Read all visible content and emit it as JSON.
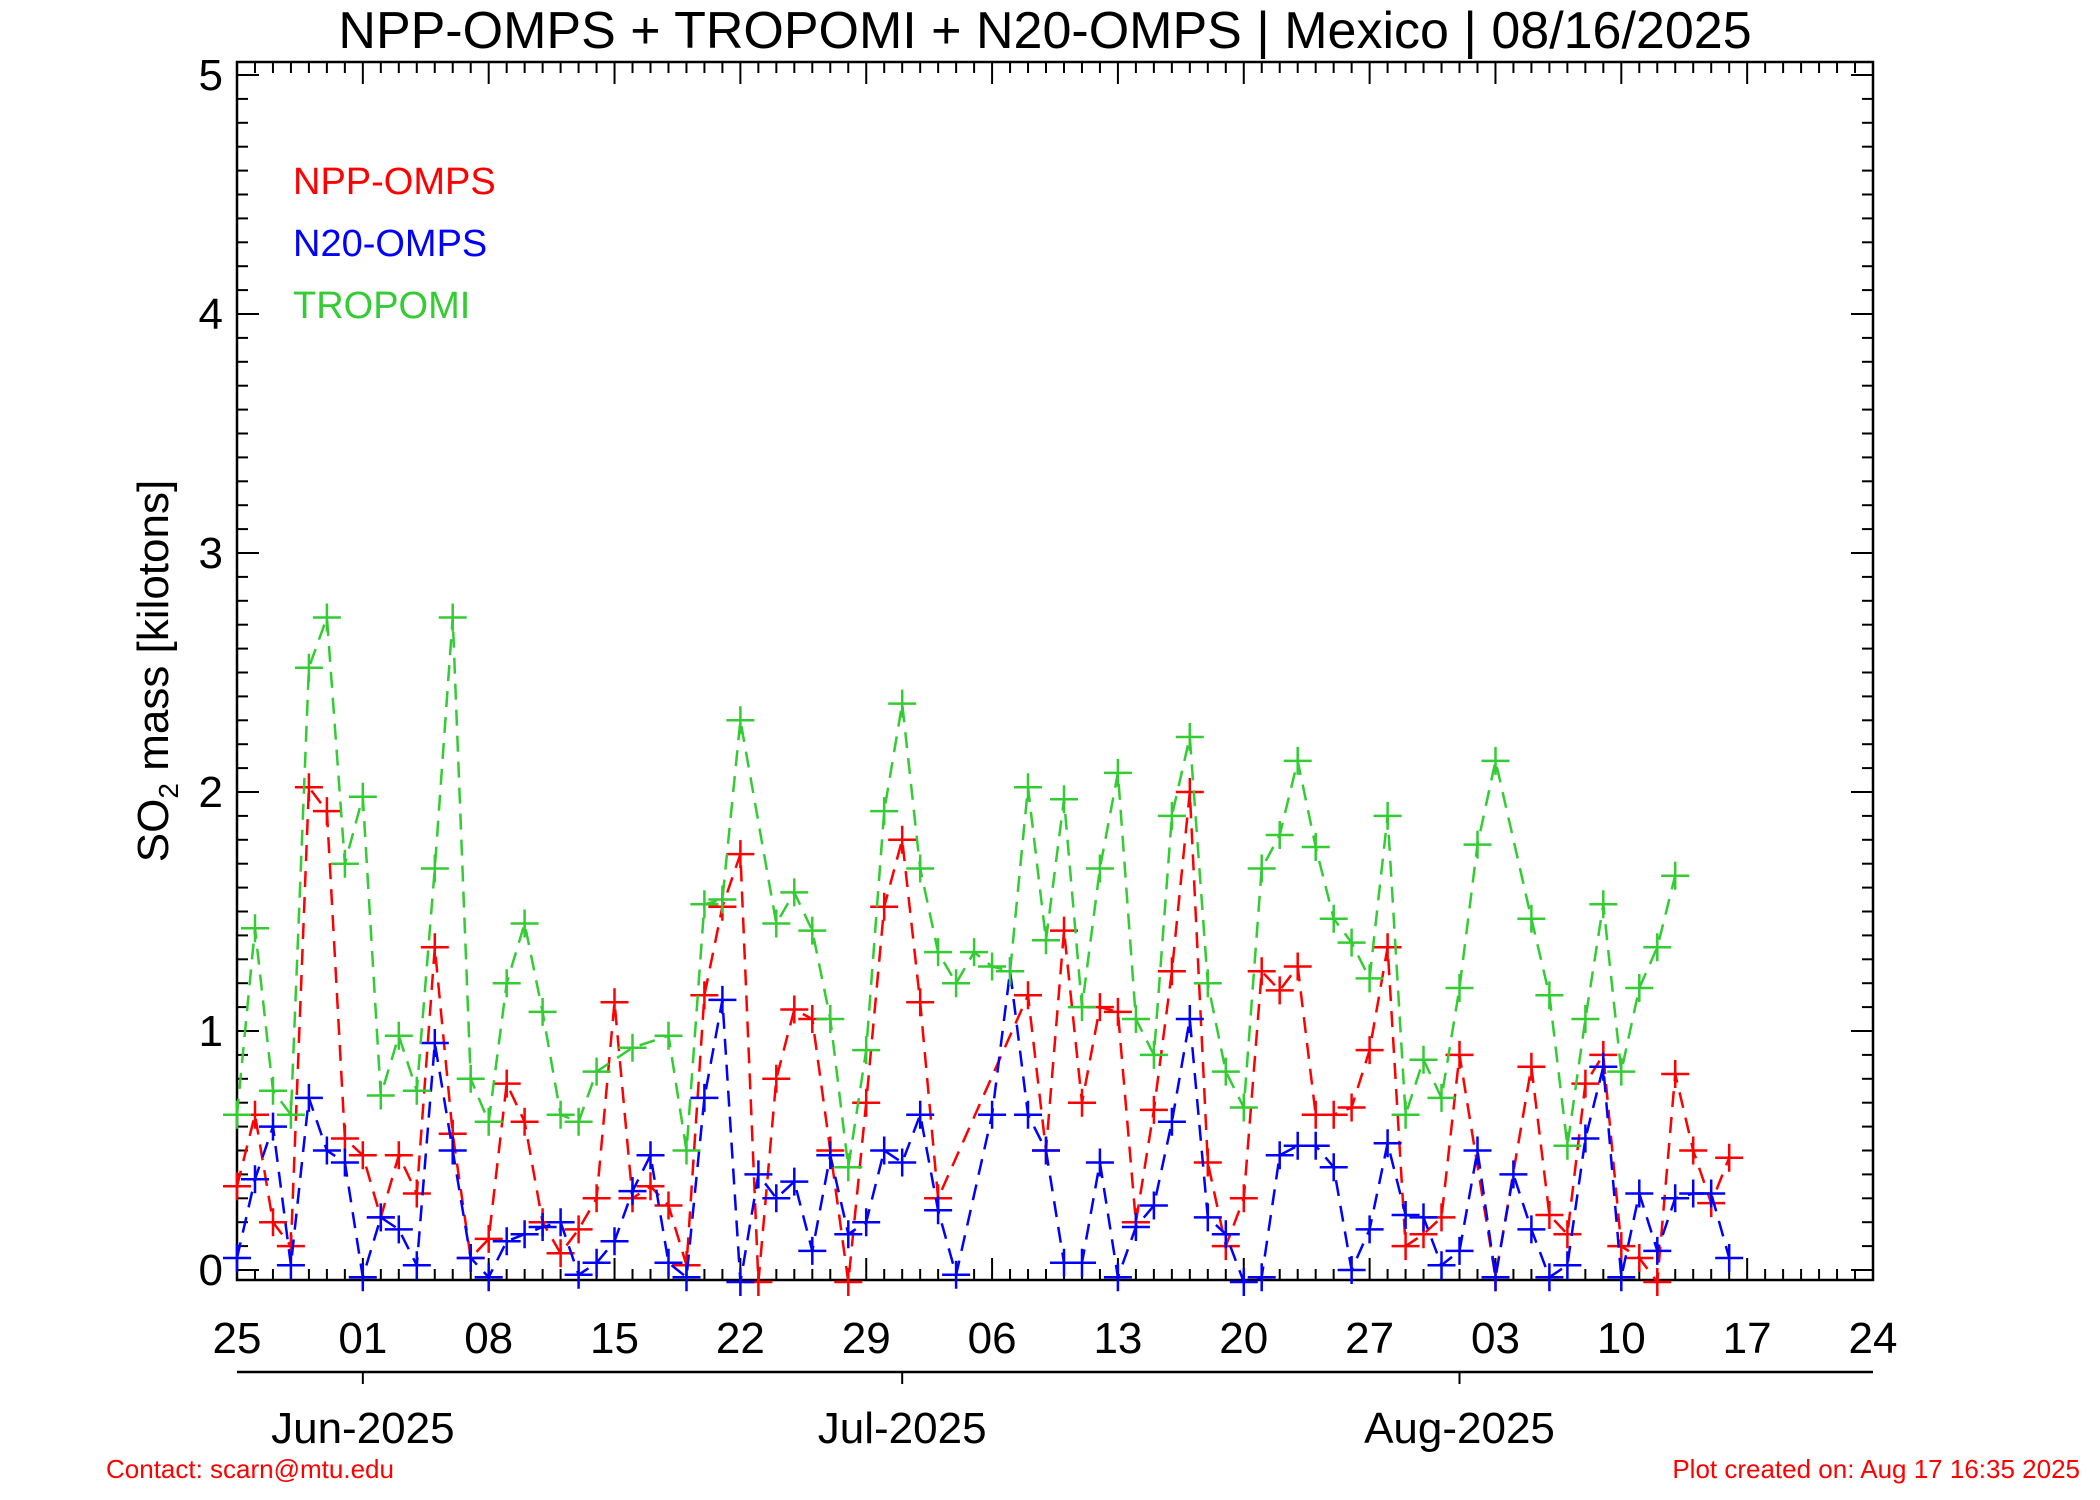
{
  "chart_data": {
    "type": "line",
    "title": "NPP-OMPS + TROPOMI + N20-OMPS | Mexico | 08/16/2025",
    "ylabel_main": "SO",
    "ylabel_sub": "2",
    "ylabel_rest": " mass [kilotons]",
    "ylim": [
      0,
      5
    ],
    "y_ticks": [
      "0",
      "1",
      "2",
      "3",
      "4",
      "5"
    ],
    "x_range": [
      "2025-05-25",
      "2025-08-24"
    ],
    "x_ticks": [
      {
        "date": "2025-05-25",
        "label": "25"
      },
      {
        "date": "2025-06-01",
        "label": "01"
      },
      {
        "date": "2025-06-08",
        "label": "08"
      },
      {
        "date": "2025-06-15",
        "label": "15"
      },
      {
        "date": "2025-06-22",
        "label": "22"
      },
      {
        "date": "2025-06-29",
        "label": "29"
      },
      {
        "date": "2025-07-06",
        "label": "06"
      },
      {
        "date": "2025-07-13",
        "label": "13"
      },
      {
        "date": "2025-07-20",
        "label": "20"
      },
      {
        "date": "2025-07-27",
        "label": "27"
      },
      {
        "date": "2025-08-03",
        "label": "03"
      },
      {
        "date": "2025-08-10",
        "label": "10"
      },
      {
        "date": "2025-08-17",
        "label": "17"
      },
      {
        "date": "2025-08-24",
        "label": "24"
      }
    ],
    "months": [
      {
        "date": "2025-06-01",
        "label": "Jun-2025"
      },
      {
        "date": "2025-07-01",
        "label": "Jul-2025"
      },
      {
        "date": "2025-08-01",
        "label": "Aug-2025"
      }
    ],
    "legend_placement": "top-left",
    "series": [
      {
        "name": "NPP-OMPS",
        "color": "#ff0000",
        "points": [
          [
            "2025-05-25",
            0.35
          ],
          [
            "2025-05-26",
            0.65
          ],
          [
            "2025-05-27",
            0.2
          ],
          [
            "2025-05-28",
            0.1
          ],
          [
            "2025-05-29",
            2.02
          ],
          [
            "2025-05-30",
            1.92
          ],
          [
            "2025-05-31",
            0.55
          ],
          [
            "2025-06-01",
            0.48
          ],
          [
            "2025-06-02",
            0.22
          ],
          [
            "2025-06-03",
            0.48
          ],
          [
            "2025-06-04",
            0.32
          ],
          [
            "2025-06-05",
            1.35
          ],
          [
            "2025-06-06",
            0.57
          ],
          [
            "2025-06-07",
            0.05
          ],
          [
            "2025-06-08",
            0.13
          ],
          [
            "2025-06-09",
            0.78
          ],
          [
            "2025-06-10",
            0.62
          ],
          [
            "2025-06-11",
            0.2
          ],
          [
            "2025-06-12",
            0.07
          ],
          [
            "2025-06-13",
            0.17
          ],
          [
            "2025-06-14",
            0.3
          ],
          [
            "2025-06-15",
            1.12
          ],
          [
            "2025-06-16",
            0.3
          ],
          [
            "2025-06-17",
            0.35
          ],
          [
            "2025-06-18",
            0.27
          ],
          [
            "2025-06-19",
            0.02
          ],
          [
            "2025-06-20",
            1.15
          ],
          [
            "2025-06-21",
            1.52
          ],
          [
            "2025-06-22",
            1.74
          ],
          [
            "2025-06-23",
            -0.05
          ],
          [
            "2025-06-24",
            0.8
          ],
          [
            "2025-06-25",
            1.09
          ],
          [
            "2025-06-26",
            1.05
          ],
          [
            "2025-06-27",
            0.5
          ],
          [
            "2025-06-28",
            -0.05
          ],
          [
            "2025-06-29",
            0.7
          ],
          [
            "2025-06-30",
            1.52
          ],
          [
            "2025-07-01",
            1.8
          ],
          [
            "2025-07-02",
            1.12
          ],
          [
            "2025-07-03",
            0.3
          ],
          [
            "2025-07-08",
            1.15
          ],
          [
            "2025-07-09",
            0.5
          ],
          [
            "2025-07-10",
            1.42
          ],
          [
            "2025-07-11",
            0.7
          ],
          [
            "2025-07-12",
            1.1
          ],
          [
            "2025-07-13",
            1.08
          ],
          [
            "2025-07-14",
            0.2
          ],
          [
            "2025-07-15",
            0.67
          ],
          [
            "2025-07-16",
            1.25
          ],
          [
            "2025-07-17",
            2.0
          ],
          [
            "2025-07-18",
            0.45
          ],
          [
            "2025-07-19",
            0.1
          ],
          [
            "2025-07-20",
            0.3
          ],
          [
            "2025-07-21",
            1.25
          ],
          [
            "2025-07-22",
            1.17
          ],
          [
            "2025-07-23",
            1.27
          ],
          [
            "2025-07-24",
            0.65
          ],
          [
            "2025-07-25",
            0.65
          ],
          [
            "2025-07-26",
            0.68
          ],
          [
            "2025-07-27",
            0.92
          ],
          [
            "2025-07-28",
            1.35
          ],
          [
            "2025-07-29",
            0.1
          ],
          [
            "2025-07-30",
            0.15
          ],
          [
            "2025-07-31",
            0.22
          ],
          [
            "2025-08-01",
            0.9
          ],
          [
            "2025-08-03",
            -0.03
          ],
          [
            "2025-08-05",
            0.85
          ],
          [
            "2025-08-06",
            0.23
          ],
          [
            "2025-08-07",
            0.15
          ],
          [
            "2025-08-08",
            0.78
          ],
          [
            "2025-08-09",
            0.9
          ],
          [
            "2025-08-10",
            0.1
          ],
          [
            "2025-08-11",
            0.05
          ],
          [
            "2025-08-12",
            -0.05
          ],
          [
            "2025-08-13",
            0.82
          ],
          [
            "2025-08-14",
            0.5
          ],
          [
            "2025-08-15",
            0.28
          ],
          [
            "2025-08-16",
            0.47
          ]
        ]
      },
      {
        "name": "N20-OMPS",
        "color": "#0000ff",
        "points": [
          [
            "2025-05-25",
            0.05
          ],
          [
            "2025-05-26",
            0.38
          ],
          [
            "2025-05-27",
            0.6
          ],
          [
            "2025-05-28",
            0.02
          ],
          [
            "2025-05-29",
            0.72
          ],
          [
            "2025-05-30",
            0.5
          ],
          [
            "2025-05-31",
            0.45
          ],
          [
            "2025-06-01",
            -0.03
          ],
          [
            "2025-06-02",
            0.22
          ],
          [
            "2025-06-03",
            0.17
          ],
          [
            "2025-06-04",
            0.02
          ],
          [
            "2025-06-05",
            0.95
          ],
          [
            "2025-06-06",
            0.5
          ],
          [
            "2025-06-07",
            0.05
          ],
          [
            "2025-06-08",
            -0.03
          ],
          [
            "2025-06-09",
            0.12
          ],
          [
            "2025-06-10",
            0.15
          ],
          [
            "2025-06-11",
            0.18
          ],
          [
            "2025-06-12",
            0.2
          ],
          [
            "2025-06-13",
            -0.02
          ],
          [
            "2025-06-14",
            0.03
          ],
          [
            "2025-06-15",
            0.12
          ],
          [
            "2025-06-16",
            0.33
          ],
          [
            "2025-06-17",
            0.48
          ],
          [
            "2025-06-18",
            0.03
          ],
          [
            "2025-06-19",
            -0.03
          ],
          [
            "2025-06-20",
            0.72
          ],
          [
            "2025-06-21",
            1.13
          ],
          [
            "2025-06-22",
            -0.05
          ],
          [
            "2025-06-23",
            0.4
          ],
          [
            "2025-06-24",
            0.3
          ],
          [
            "2025-06-25",
            0.37
          ],
          [
            "2025-06-26",
            0.08
          ],
          [
            "2025-06-27",
            0.48
          ],
          [
            "2025-06-28",
            0.15
          ],
          [
            "2025-06-29",
            0.2
          ],
          [
            "2025-06-30",
            0.5
          ],
          [
            "2025-07-01",
            0.45
          ],
          [
            "2025-07-02",
            0.65
          ],
          [
            "2025-07-03",
            0.25
          ],
          [
            "2025-07-04",
            -0.02
          ],
          [
            "2025-07-06",
            0.65
          ],
          [
            "2025-07-07",
            1.25
          ],
          [
            "2025-07-08",
            0.65
          ],
          [
            "2025-07-09",
            0.5
          ],
          [
            "2025-07-10",
            0.03
          ],
          [
            "2025-07-11",
            0.03
          ],
          [
            "2025-07-12",
            0.45
          ],
          [
            "2025-07-13",
            -0.03
          ],
          [
            "2025-07-14",
            0.18
          ],
          [
            "2025-07-15",
            0.27
          ],
          [
            "2025-07-16",
            0.62
          ],
          [
            "2025-07-17",
            1.05
          ],
          [
            "2025-07-18",
            0.22
          ],
          [
            "2025-07-19",
            0.15
          ],
          [
            "2025-07-20",
            -0.05
          ],
          [
            "2025-07-21",
            -0.03
          ],
          [
            "2025-07-22",
            0.48
          ],
          [
            "2025-07-23",
            0.52
          ],
          [
            "2025-07-24",
            0.52
          ],
          [
            "2025-07-25",
            0.43
          ],
          [
            "2025-07-26",
            0.0
          ],
          [
            "2025-07-27",
            0.17
          ],
          [
            "2025-07-28",
            0.53
          ],
          [
            "2025-07-29",
            0.23
          ],
          [
            "2025-07-30",
            0.22
          ],
          [
            "2025-07-31",
            0.02
          ],
          [
            "2025-08-01",
            0.08
          ],
          [
            "2025-08-02",
            0.5
          ],
          [
            "2025-08-03",
            -0.03
          ],
          [
            "2025-08-04",
            0.4
          ],
          [
            "2025-08-05",
            0.17
          ],
          [
            "2025-08-06",
            -0.03
          ],
          [
            "2025-08-07",
            0.02
          ],
          [
            "2025-08-08",
            0.55
          ],
          [
            "2025-08-09",
            0.85
          ],
          [
            "2025-08-10",
            -0.03
          ],
          [
            "2025-08-11",
            0.32
          ],
          [
            "2025-08-12",
            0.08
          ],
          [
            "2025-08-13",
            0.3
          ],
          [
            "2025-08-14",
            0.32
          ],
          [
            "2025-08-15",
            0.32
          ],
          [
            "2025-08-16",
            0.05
          ]
        ]
      },
      {
        "name": "TROPOMI",
        "color": "#33cc33",
        "points": [
          [
            "2025-05-25",
            0.65
          ],
          [
            "2025-05-26",
            1.43
          ],
          [
            "2025-05-27",
            0.75
          ],
          [
            "2025-05-28",
            0.65
          ],
          [
            "2025-05-29",
            2.52
          ],
          [
            "2025-05-30",
            2.73
          ],
          [
            "2025-05-31",
            1.7
          ],
          [
            "2025-06-01",
            1.98
          ],
          [
            "2025-06-02",
            0.73
          ],
          [
            "2025-06-03",
            0.98
          ],
          [
            "2025-06-04",
            0.75
          ],
          [
            "2025-06-05",
            1.68
          ],
          [
            "2025-06-06",
            2.73
          ],
          [
            "2025-06-07",
            0.8
          ],
          [
            "2025-06-08",
            0.62
          ],
          [
            "2025-06-09",
            1.2
          ],
          [
            "2025-06-10",
            1.45
          ],
          [
            "2025-06-11",
            1.08
          ],
          [
            "2025-06-12",
            0.65
          ],
          [
            "2025-06-13",
            0.62
          ],
          [
            "2025-06-14",
            0.83
          ],
          [
            "2025-06-16",
            0.93
          ],
          [
            "2025-06-18",
            0.98
          ],
          [
            "2025-06-19",
            0.5
          ],
          [
            "2025-06-20",
            1.53
          ],
          [
            "2025-06-21",
            1.55
          ],
          [
            "2025-06-22",
            2.3
          ],
          [
            "2025-06-24",
            1.45
          ],
          [
            "2025-06-25",
            1.58
          ],
          [
            "2025-06-26",
            1.42
          ],
          [
            "2025-06-27",
            1.05
          ],
          [
            "2025-06-28",
            0.43
          ],
          [
            "2025-06-29",
            0.92
          ],
          [
            "2025-06-30",
            1.92
          ],
          [
            "2025-07-01",
            2.37
          ],
          [
            "2025-07-02",
            1.68
          ],
          [
            "2025-07-03",
            1.33
          ],
          [
            "2025-07-04",
            1.2
          ],
          [
            "2025-07-05",
            1.33
          ],
          [
            "2025-07-06",
            1.27
          ],
          [
            "2025-07-07",
            1.25
          ],
          [
            "2025-07-08",
            2.02
          ],
          [
            "2025-07-09",
            1.38
          ],
          [
            "2025-07-10",
            1.97
          ],
          [
            "2025-07-11",
            1.1
          ],
          [
            "2025-07-12",
            1.68
          ],
          [
            "2025-07-13",
            2.08
          ],
          [
            "2025-07-14",
            1.05
          ],
          [
            "2025-07-15",
            0.9
          ],
          [
            "2025-07-16",
            1.9
          ],
          [
            "2025-07-17",
            2.23
          ],
          [
            "2025-07-18",
            1.2
          ],
          [
            "2025-07-19",
            0.83
          ],
          [
            "2025-07-20",
            0.68
          ],
          [
            "2025-07-21",
            1.68
          ],
          [
            "2025-07-22",
            1.82
          ],
          [
            "2025-07-23",
            2.13
          ],
          [
            "2025-07-24",
            1.77
          ],
          [
            "2025-07-25",
            1.47
          ],
          [
            "2025-07-26",
            1.37
          ],
          [
            "2025-07-27",
            1.22
          ],
          [
            "2025-07-28",
            1.9
          ],
          [
            "2025-07-29",
            0.65
          ],
          [
            "2025-07-30",
            0.88
          ],
          [
            "2025-07-31",
            0.72
          ],
          [
            "2025-08-01",
            1.18
          ],
          [
            "2025-08-02",
            1.78
          ],
          [
            "2025-08-03",
            2.13
          ],
          [
            "2025-08-05",
            1.47
          ],
          [
            "2025-08-06",
            1.15
          ],
          [
            "2025-08-07",
            0.52
          ],
          [
            "2025-08-08",
            1.05
          ],
          [
            "2025-08-09",
            1.53
          ],
          [
            "2025-08-10",
            0.83
          ],
          [
            "2025-08-11",
            1.18
          ],
          [
            "2025-08-12",
            1.35
          ],
          [
            "2025-08-13",
            1.65
          ]
        ]
      }
    ]
  },
  "footer": {
    "contact": "Contact: scarn@mtu.edu",
    "created": "Plot created on: Aug 17 16:35 2025"
  }
}
